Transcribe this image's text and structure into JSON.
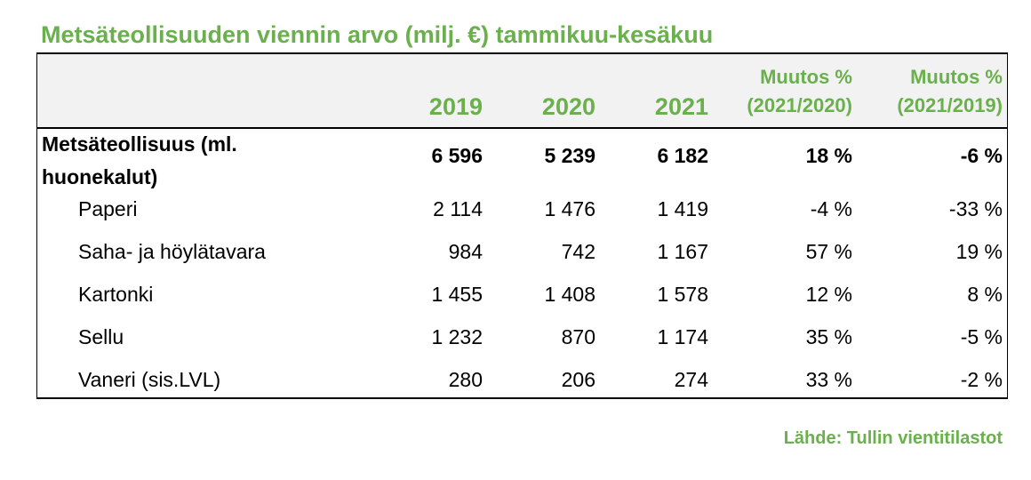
{
  "title": "Metsäteollisuuden viennin arvo (milj. €) tammikuu-kesäkuu",
  "source": "Lähde: Tullin vientitilastot",
  "colors": {
    "accent": "#6ab04c",
    "header_bg": "#f2f2f2"
  },
  "chart_data": {
    "type": "table",
    "columns": [
      "2019",
      "2020",
      "2021",
      "Muutos % (2021/2020)",
      "Muutos % (2021/2019)"
    ],
    "column_headers": {
      "y2019": "2019",
      "y2020": "2020",
      "y2021": "2021",
      "change1_line1": "Muutos %",
      "change1_line2": "(2021/2020)",
      "change2_line1": "Muutos %",
      "change2_line2": "(2021/2019)"
    },
    "rows": [
      {
        "label_line1": "Metsäteollisuus (ml.",
        "label_line2": "huonekalut)",
        "v2019": "6 596",
        "v2020": "5 239",
        "v2021": "6 182",
        "c1": "18 %",
        "c2": "-6 %"
      },
      {
        "label": "Paperi",
        "v2019": "2 114",
        "v2020": "1 476",
        "v2021": "1 419",
        "c1": "-4 %",
        "c2": "-33 %"
      },
      {
        "label": "Saha- ja höylätavara",
        "v2019": "984",
        "v2020": "742",
        "v2021": "1 167",
        "c1": "57 %",
        "c2": "19 %"
      },
      {
        "label": "Kartonki",
        "v2019": "1 455",
        "v2020": "1 408",
        "v2021": "1 578",
        "c1": "12 %",
        "c2": "8 %"
      },
      {
        "label": "Sellu",
        "v2019": "1 232",
        "v2020": "870",
        "v2021": "1 174",
        "c1": "35 %",
        "c2": "-5 %"
      },
      {
        "label": "Vaneri (sis.LVL)",
        "v2019": "280",
        "v2020": "206",
        "v2021": "274",
        "c1": "33 %",
        "c2": "-2 %"
      }
    ]
  }
}
